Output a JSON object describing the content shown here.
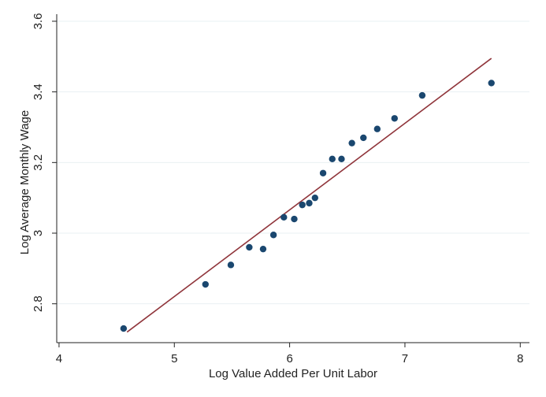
{
  "chart_data": {
    "type": "scatter",
    "title": "",
    "xlabel": "Log Value Added Per Unit Labor",
    "ylabel": "Log Average Monthly Wage",
    "xlim": [
      3.98,
      8.08
    ],
    "ylim": [
      2.69,
      3.62
    ],
    "xticks": [
      4,
      5,
      6,
      7,
      8
    ],
    "yticks": [
      2.8,
      3,
      3.2,
      3.4,
      3.6
    ],
    "xtick_labels": [
      "4",
      "5",
      "6",
      "7",
      "8"
    ],
    "ytick_labels": [
      "2.8",
      "3",
      "3.2",
      "3.4",
      "3.6"
    ],
    "grid": true,
    "legend": "none",
    "series": [
      {
        "type": "scatter",
        "color": "#1a476f",
        "points": [
          {
            "x": 4.56,
            "y": 2.73
          },
          {
            "x": 5.27,
            "y": 2.855
          },
          {
            "x": 5.49,
            "y": 2.91
          },
          {
            "x": 5.65,
            "y": 2.96
          },
          {
            "x": 5.77,
            "y": 2.955
          },
          {
            "x": 5.86,
            "y": 2.995
          },
          {
            "x": 5.95,
            "y": 3.045
          },
          {
            "x": 6.04,
            "y": 3.04
          },
          {
            "x": 6.11,
            "y": 3.08
          },
          {
            "x": 6.17,
            "y": 3.085
          },
          {
            "x": 6.22,
            "y": 3.1
          },
          {
            "x": 6.29,
            "y": 3.17
          },
          {
            "x": 6.37,
            "y": 3.21
          },
          {
            "x": 6.45,
            "y": 3.21
          },
          {
            "x": 6.54,
            "y": 3.255
          },
          {
            "x": 6.64,
            "y": 3.27
          },
          {
            "x": 6.76,
            "y": 3.295
          },
          {
            "x": 6.91,
            "y": 3.325
          },
          {
            "x": 7.15,
            "y": 3.39
          },
          {
            "x": 7.75,
            "y": 3.425
          }
        ]
      },
      {
        "type": "line",
        "color": "#90353b",
        "points": [
          {
            "x": 4.59,
            "y": 2.72
          },
          {
            "x": 7.75,
            "y": 3.495
          }
        ]
      }
    ]
  }
}
